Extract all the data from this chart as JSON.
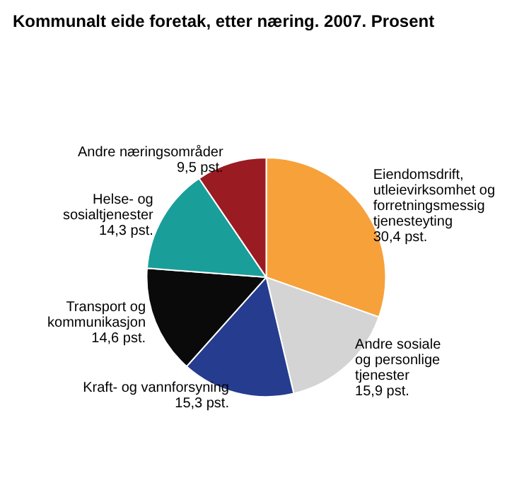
{
  "chart_data": {
    "type": "pie",
    "title": "Kommunalt eide foretak, etter næring. 2007. Prosent",
    "categories": [
      "Eiendomsdrift,\nutleievirksomhet og\nforretningsmessig\ntjenesteyting",
      "Andre sosiale\nog personlige\ntjenester",
      "Kraft- og vannforsyning",
      "Transport og\nkommunikasjon",
      "Helse- og\nsosialtjenester",
      "Andre næringsområder"
    ],
    "values": [
      30.4,
      15.9,
      15.3,
      14.6,
      14.3,
      9.5
    ],
    "value_labels": [
      "30,4 pst.",
      "15,9 pst.",
      "15,3 pst.",
      "14,6 pst.",
      "14,3 pst.",
      "9,5 pst."
    ],
    "colors": [
      "#f7a13a",
      "#d4d4d4",
      "#253c8f",
      "#0a0a0a",
      "#1a9e9a",
      "#9a1b22"
    ],
    "legend": false
  }
}
